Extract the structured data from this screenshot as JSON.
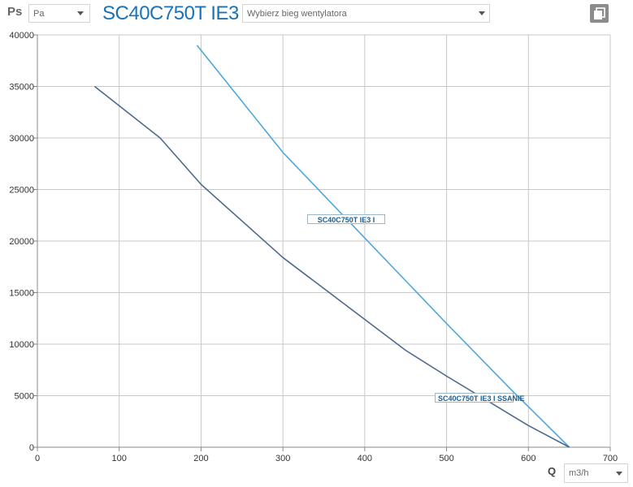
{
  "header": {
    "pressure_symbol": "Ps",
    "pressure_unit": "Pa",
    "product_name": "SC40C750T IE3",
    "speed_placeholder": "Wybierz bieg wentylatora"
  },
  "footer": {
    "flow_symbol": "Q",
    "flow_unit": "m3/h"
  },
  "colors": {
    "title": "#1a72b8",
    "series_light": "#4fa8dc",
    "series_dark": "#4d6a8c",
    "grid": "#c8c8c8",
    "axis": "#888888"
  },
  "icons": {
    "copy": "copy-icon",
    "dropdown": "chevron-down-icon"
  },
  "chart_data": {
    "type": "line",
    "title": "",
    "xlabel": "Q",
    "ylabel": "Ps",
    "xlim": [
      0,
      700
    ],
    "ylim": [
      0,
      40000
    ],
    "grid": true,
    "x_ticks": [
      0,
      100,
      200,
      300,
      400,
      500,
      600,
      700
    ],
    "y_ticks": [
      0,
      5000,
      10000,
      15000,
      20000,
      25000,
      30000,
      35000,
      40000
    ],
    "series": [
      {
        "name": "SC40C750T IE3 I",
        "color": "#4fa8dc",
        "x": [
          195,
          300,
          400,
          500,
          580,
          650
        ],
        "y": [
          39000,
          28600,
          20300,
          12000,
          5500,
          0
        ]
      },
      {
        "name": "SC40C750T IE3 I SSANIE",
        "color": "#4d6a8c",
        "x": [
          70,
          150,
          200,
          300,
          400,
          450,
          500,
          550,
          600,
          650
        ],
        "y": [
          35000,
          30000,
          25500,
          18400,
          12400,
          9400,
          6900,
          4500,
          2100,
          0
        ]
      }
    ]
  }
}
